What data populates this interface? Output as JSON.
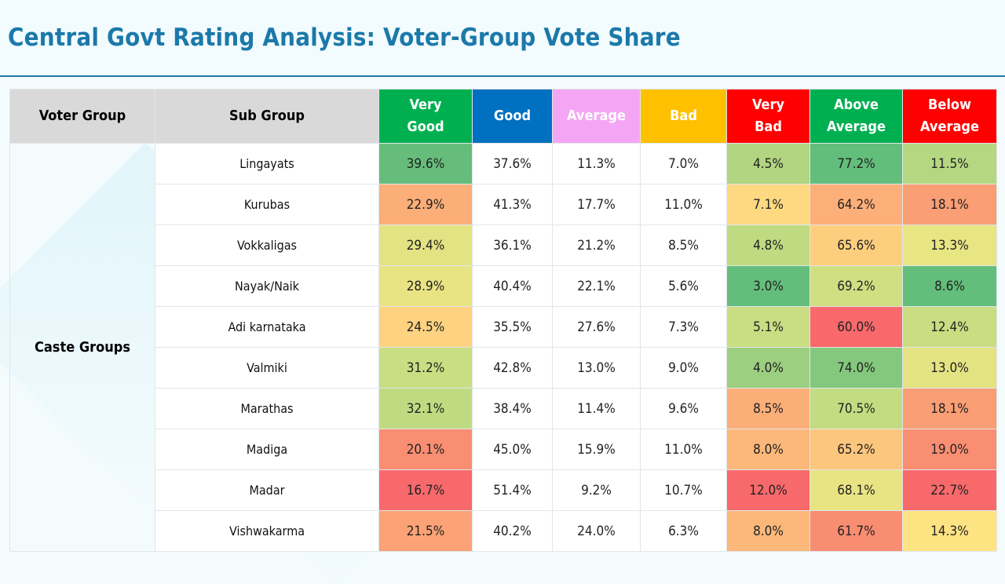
{
  "page": {
    "title": "Central Govt Rating Analysis: Voter-Group Vote Share"
  },
  "columns": [
    {
      "label": "Voter Group",
      "bg": "#d9d9d9",
      "fg": "#000000"
    },
    {
      "label": "Sub Group",
      "bg": "#d9d9d9",
      "fg": "#000000"
    },
    {
      "label": "Very Good",
      "bg": "#00b050",
      "fg": "#ffffff"
    },
    {
      "label": "Good",
      "bg": "#0070c0",
      "fg": "#ffffff"
    },
    {
      "label": "Average",
      "bg": "#f4a6f4",
      "fg": "#ffffff"
    },
    {
      "label": "Bad",
      "bg": "#ffc000",
      "fg": "#ffffff"
    },
    {
      "label": "Very Bad",
      "bg": "#ff0000",
      "fg": "#ffffff"
    },
    {
      "label": "Above Average",
      "bg": "#00b050",
      "fg": "#ffffff"
    },
    {
      "label": "Below Average",
      "bg": "#ff0000",
      "fg": "#ffffff"
    }
  ],
  "voter_group": "Caste Groups",
  "rows": [
    {
      "sub": "Lingayats",
      "very_good": "39.6%",
      "good": "37.6%",
      "average": "11.3%",
      "bad": "7.0%",
      "very_bad": "4.5%",
      "above_average": "77.2%",
      "below_average": "11.5%"
    },
    {
      "sub": "Kurubas",
      "very_good": "22.9%",
      "good": "41.3%",
      "average": "17.7%",
      "bad": "11.0%",
      "very_bad": "7.1%",
      "above_average": "64.2%",
      "below_average": "18.1%"
    },
    {
      "sub": "Vokkaligas",
      "very_good": "29.4%",
      "good": "36.1%",
      "average": "21.2%",
      "bad": "8.5%",
      "very_bad": "4.8%",
      "above_average": "65.6%",
      "below_average": "13.3%"
    },
    {
      "sub": "Nayak/Naik",
      "very_good": "28.9%",
      "good": "40.4%",
      "average": "22.1%",
      "bad": "5.6%",
      "very_bad": "3.0%",
      "above_average": "69.2%",
      "below_average": "8.6%"
    },
    {
      "sub": "Adi karnataka",
      "very_good": "24.5%",
      "good": "35.5%",
      "average": "27.6%",
      "bad": "7.3%",
      "very_bad": "5.1%",
      "above_average": "60.0%",
      "below_average": "12.4%"
    },
    {
      "sub": "Valmiki",
      "very_good": "31.2%",
      "good": "42.8%",
      "average": "13.0%",
      "bad": "9.0%",
      "very_bad": "4.0%",
      "above_average": "74.0%",
      "below_average": "13.0%"
    },
    {
      "sub": "Marathas",
      "very_good": "32.1%",
      "good": "38.4%",
      "average": "11.4%",
      "bad": "9.6%",
      "very_bad": "8.5%",
      "above_average": "70.5%",
      "below_average": "18.1%"
    },
    {
      "sub": "Madiga",
      "very_good": "20.1%",
      "good": "45.0%",
      "average": "15.9%",
      "bad": "11.0%",
      "very_bad": "8.0%",
      "above_average": "65.2%",
      "below_average": "19.0%"
    },
    {
      "sub": "Madar",
      "very_good": "16.7%",
      "good": "51.4%",
      "average": "9.2%",
      "bad": "10.7%",
      "very_bad": "12.0%",
      "above_average": "68.1%",
      "below_average": "22.7%"
    },
    {
      "sub": "Vishwakarma",
      "very_good": "21.5%",
      "good": "40.2%",
      "average": "24.0%",
      "bad": "6.3%",
      "very_bad": "8.0%",
      "above_average": "61.7%",
      "below_average": "14.3%"
    }
  ],
  "heatmap_colors": {
    "very_good": [
      "#66bd7b",
      "#fbae78",
      "#e3e383",
      "#e9e483",
      "#fed280",
      "#c9de82",
      "#bfdb81",
      "#f98e72",
      "#f7696b",
      "#fba276"
    ],
    "very_bad": [
      "#b1d580",
      "#fed981",
      "#bfdb81",
      "#63be7b",
      "#c9dd82",
      "#9ccf7f",
      "#fbae78",
      "#fcb87a",
      "#f8696b",
      "#fcb87a"
    ],
    "above_average": [
      "#63be7b",
      "#fcaf78",
      "#fece7f",
      "#d0df82",
      "#f8696b",
      "#84c87d",
      "#c3dc81",
      "#fdc67d",
      "#e9e483",
      "#f98d72"
    ],
    "below_average": [
      "#b5d781",
      "#fa9e75",
      "#e8e583",
      "#63be7b",
      "#cadd82",
      "#e3e383",
      "#fa9e75",
      "#f98e72",
      "#f8696b",
      "#fee382"
    ]
  }
}
